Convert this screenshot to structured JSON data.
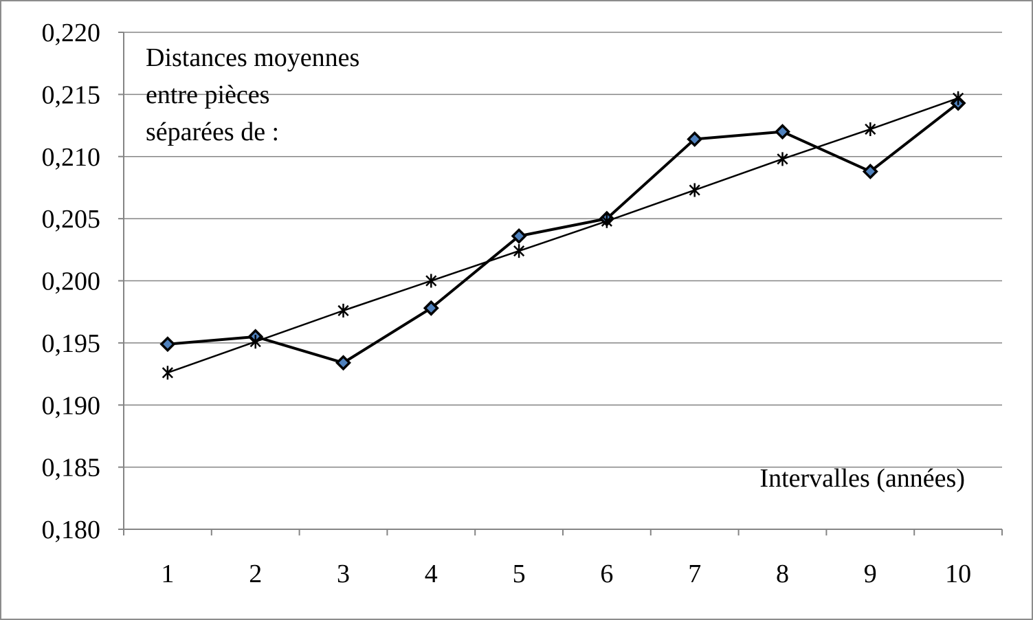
{
  "chart_data": {
    "type": "line",
    "title": "Distances moyennes entre pièces séparées de :",
    "title_lines": [
      "Distances moyennes",
      "entre pièces",
      "séparées de :"
    ],
    "xlabel": "Intervalles (années)",
    "ylabel": "",
    "categories": [
      "1",
      "2",
      "3",
      "4",
      "5",
      "6",
      "7",
      "8",
      "9",
      "10"
    ],
    "y_ticks": [
      "0,180",
      "0,185",
      "0,190",
      "0,195",
      "0,200",
      "0,205",
      "0,210",
      "0,215",
      "0,220"
    ],
    "ylim": [
      0.18,
      0.22
    ],
    "grid": true,
    "legend": "none",
    "series": [
      {
        "marker": "diamond",
        "color": "#000000",
        "marker_fill": "#4f81bd",
        "values": [
          0.1949,
          0.1955,
          0.1934,
          0.1978,
          0.2036,
          0.205,
          0.2114,
          0.212,
          0.2088,
          0.2143
        ]
      },
      {
        "marker": "star",
        "color": "#000000",
        "values": [
          0.1926,
          0.1951,
          0.1976,
          0.2,
          0.2024,
          0.2048,
          0.2073,
          0.2098,
          0.2122,
          0.2147
        ]
      }
    ]
  }
}
